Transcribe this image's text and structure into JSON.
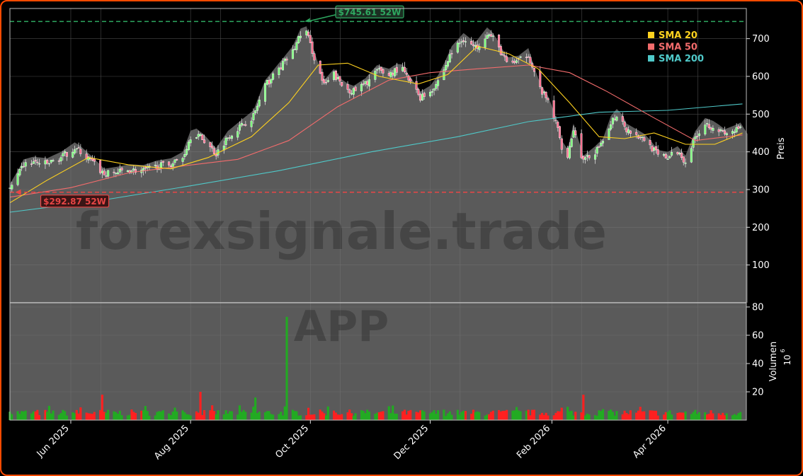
{
  "watermark": {
    "main": "forexsignale.trade",
    "symbol": "APP"
  },
  "colors": {
    "up": "#22aa22",
    "down": "#ff2020",
    "sma20": "#ffd21f",
    "sma50": "#f36c6c",
    "sma200": "#4fc9c9",
    "high_line": "#2ea860",
    "low_line": "#e84545",
    "area": "#5a5a5a",
    "grid": "#7a7a7a",
    "text": "#ffffff",
    "border": "#ff4a00"
  },
  "chart_data": [
    {
      "type": "candlestick",
      "panel": "price",
      "ylabel": "Preis",
      "ylim": [
        0,
        780
      ],
      "yticks": [
        100,
        200,
        300,
        400,
        500,
        600,
        700
      ],
      "x_start": "2025-05-01",
      "x_end": "2026-05-11",
      "xticks": [
        {
          "date": "2025-06-01",
          "label": "Jun 2025"
        },
        {
          "date": "2025-08-01",
          "label": "Aug 2025"
        },
        {
          "date": "2025-10-01",
          "label": "Oct 2025"
        },
        {
          "date": "2025-12-01",
          "label": "Dec 2025"
        },
        {
          "date": "2026-02-01",
          "label": "Feb 2026"
        },
        {
          "date": "2026-04-01",
          "label": "Apr 2026"
        }
      ],
      "close_path": [
        [
          "2025-05-01",
          300
        ],
        [
          "2025-05-05",
          335
        ],
        [
          "2025-05-08",
          365
        ],
        [
          "2025-05-13",
          372
        ],
        [
          "2025-05-20",
          368
        ],
        [
          "2025-05-27",
          385
        ],
        [
          "2025-06-03",
          410
        ],
        [
          "2025-06-06",
          400
        ],
        [
          "2025-06-12",
          372
        ],
        [
          "2025-06-18",
          340
        ],
        [
          "2025-06-24",
          345
        ],
        [
          "2025-07-01",
          352
        ],
        [
          "2025-07-08",
          350
        ],
        [
          "2025-07-15",
          362
        ],
        [
          "2025-07-22",
          368
        ],
        [
          "2025-07-28",
          385
        ],
        [
          "2025-08-02",
          455
        ],
        [
          "2025-08-08",
          430
        ],
        [
          "2025-08-14",
          395
        ],
        [
          "2025-08-20",
          440
        ],
        [
          "2025-08-27",
          470
        ],
        [
          "2025-09-02",
          495
        ],
        [
          "2025-09-08",
          575
        ],
        [
          "2025-09-15",
          620
        ],
        [
          "2025-09-22",
          665
        ],
        [
          "2025-09-28",
          735
        ],
        [
          "2025-10-03",
          650
        ],
        [
          "2025-10-08",
          575
        ],
        [
          "2025-10-13",
          605
        ],
        [
          "2025-10-18",
          570
        ],
        [
          "2025-10-23",
          560
        ],
        [
          "2025-10-29",
          580
        ],
        [
          "2025-11-04",
          615
        ],
        [
          "2025-11-10",
          605
        ],
        [
          "2025-11-16",
          625
        ],
        [
          "2025-11-20",
          590
        ],
        [
          "2025-11-26",
          545
        ],
        [
          "2025-12-01",
          560
        ],
        [
          "2025-12-06",
          595
        ],
        [
          "2025-12-12",
          665
        ],
        [
          "2025-12-18",
          700
        ],
        [
          "2025-12-24",
          675
        ],
        [
          "2025-12-30",
          715
        ],
        [
          "2026-01-03",
          695
        ],
        [
          "2026-01-09",
          635
        ],
        [
          "2026-01-15",
          640
        ],
        [
          "2026-01-20",
          660
        ],
        [
          "2026-01-25",
          575
        ],
        [
          "2026-01-31",
          525
        ],
        [
          "2026-02-04",
          460
        ],
        [
          "2026-02-08",
          370
        ],
        [
          "2026-02-12",
          460
        ],
        [
          "2026-02-17",
          375
        ],
        [
          "2026-02-22",
          395
        ],
        [
          "2026-02-27",
          420
        ],
        [
          "2026-03-03",
          480
        ],
        [
          "2026-03-07",
          505
        ],
        [
          "2026-03-11",
          460
        ],
        [
          "2026-03-16",
          445
        ],
        [
          "2026-03-21",
          430
        ],
        [
          "2026-03-27",
          390
        ],
        [
          "2026-04-01",
          385
        ],
        [
          "2026-04-06",
          400
        ],
        [
          "2026-04-10",
          375
        ],
        [
          "2026-04-15",
          440
        ],
        [
          "2026-04-20",
          475
        ],
        [
          "2026-04-25",
          465
        ],
        [
          "2026-04-30",
          445
        ],
        [
          "2026-05-05",
          455
        ],
        [
          "2026-05-09",
          465
        ]
      ],
      "sma20": [
        [
          "2025-05-01",
          265
        ],
        [
          "2025-05-20",
          325
        ],
        [
          "2025-06-10",
          385
        ],
        [
          "2025-07-01",
          365
        ],
        [
          "2025-07-22",
          355
        ],
        [
          "2025-08-10",
          385
        ],
        [
          "2025-09-01",
          440
        ],
        [
          "2025-09-20",
          530
        ],
        [
          "2025-10-05",
          630
        ],
        [
          "2025-10-20",
          635
        ],
        [
          "2025-11-05",
          600
        ],
        [
          "2025-11-25",
          580
        ],
        [
          "2025-12-10",
          605
        ],
        [
          "2025-12-25",
          680
        ],
        [
          "2026-01-10",
          660
        ],
        [
          "2026-01-25",
          620
        ],
        [
          "2026-02-10",
          530
        ],
        [
          "2026-02-25",
          440
        ],
        [
          "2026-03-10",
          435
        ],
        [
          "2026-03-25",
          450
        ],
        [
          "2026-04-10",
          420
        ],
        [
          "2026-04-25",
          420
        ],
        [
          "2026-05-09",
          450
        ]
      ],
      "sma50": [
        [
          "2025-05-01",
          280
        ],
        [
          "2025-06-01",
          305
        ],
        [
          "2025-07-01",
          345
        ],
        [
          "2025-08-01",
          365
        ],
        [
          "2025-08-25",
          380
        ],
        [
          "2025-09-20",
          430
        ],
        [
          "2025-10-15",
          520
        ],
        [
          "2025-11-10",
          590
        ],
        [
          "2025-12-01",
          610
        ],
        [
          "2025-12-25",
          620
        ],
        [
          "2026-01-20",
          630
        ],
        [
          "2026-02-10",
          610
        ],
        [
          "2026-03-01",
          560
        ],
        [
          "2026-03-25",
          490
        ],
        [
          "2026-04-15",
          430
        ],
        [
          "2026-05-09",
          445
        ]
      ],
      "sma200": [
        [
          "2025-05-01",
          240
        ],
        [
          "2025-06-15",
          270
        ],
        [
          "2025-08-01",
          310
        ],
        [
          "2025-09-15",
          350
        ],
        [
          "2025-11-01",
          400
        ],
        [
          "2025-12-15",
          440
        ],
        [
          "2026-01-20",
          480
        ],
        [
          "2026-02-25",
          505
        ],
        [
          "2026-04-01",
          510
        ],
        [
          "2026-05-09",
          527
        ]
      ],
      "sma_end": {
        "sma20": 450,
        "sma50": 445,
        "sma200": 527
      },
      "high_52w": {
        "value": 745.61,
        "label": "$745.61 52W",
        "date": "2025-09-28"
      },
      "low_52w": {
        "value": 292.87,
        "label": "$292.87 52W",
        "date": "2025-05-03"
      },
      "legend": {
        "position": "top-right",
        "items": [
          {
            "label": "SMA 20",
            "key": "sma20"
          },
          {
            "label": "SMA 50",
            "key": "sma50"
          },
          {
            "label": "SMA 200",
            "key": "sma200"
          }
        ]
      },
      "grid": true
    },
    {
      "type": "bar",
      "panel": "volume",
      "ylabel": "Volumen",
      "yscale_label": "10",
      "yscale_exp": "6",
      "ylim": [
        0,
        83
      ],
      "yticks": [
        20,
        40,
        60,
        80
      ],
      "spike": {
        "date": "2025-09-19",
        "value": 73
      },
      "notable": [
        {
          "date": "2025-06-17",
          "value": 18
        },
        {
          "date": "2025-08-06",
          "value": 20
        },
        {
          "date": "2025-09-03",
          "value": 16
        },
        {
          "date": "2026-02-17",
          "value": 18
        }
      ]
    }
  ]
}
